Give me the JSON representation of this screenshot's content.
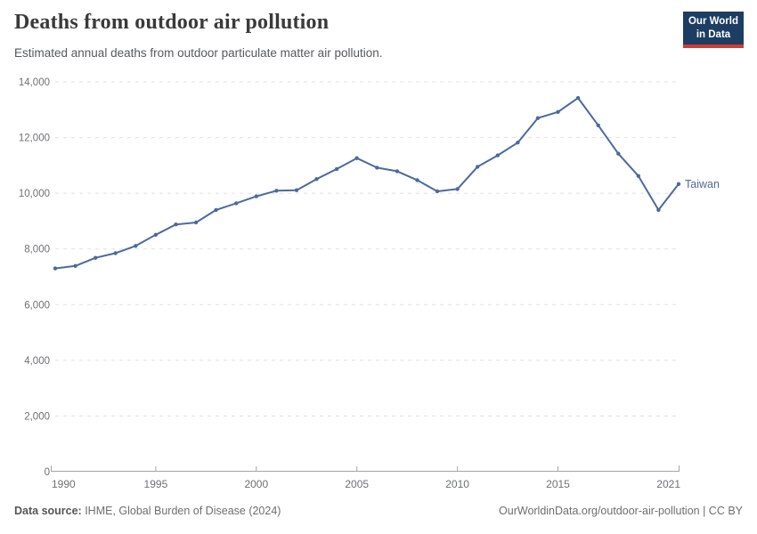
{
  "header": {
    "title": "Deaths from outdoor air pollution",
    "subtitle": "Estimated annual deaths from outdoor particulate matter air pollution."
  },
  "logo": {
    "line1": "Our World",
    "line2": "in Data",
    "bg_color": "#1d3d63",
    "accent_color": "#cd3d32"
  },
  "chart_data": {
    "type": "line",
    "title": "Deaths from outdoor air pollution",
    "xlabel": "",
    "ylabel": "",
    "ylim": [
      0,
      14000
    ],
    "yticks": [
      0,
      2000,
      4000,
      6000,
      8000,
      10000,
      12000,
      14000
    ],
    "ytick_labels": [
      "0",
      "2,000",
      "4,000",
      "6,000",
      "8,000",
      "10,000",
      "12,000",
      "14,000"
    ],
    "xticks": [
      1990,
      1995,
      2000,
      2005,
      2010,
      2015,
      2021
    ],
    "grid": "horizontal-dashed",
    "legend_position": "end-of-line-label",
    "x": [
      1990,
      1991,
      1992,
      1993,
      1994,
      1995,
      1996,
      1997,
      1998,
      1999,
      2000,
      2001,
      2002,
      2003,
      2004,
      2005,
      2006,
      2007,
      2008,
      2009,
      2010,
      2011,
      2012,
      2013,
      2014,
      2015,
      2016,
      2017,
      2018,
      2019,
      2020,
      2021
    ],
    "series": [
      {
        "name": "Taiwan",
        "color": "#4c6a9c",
        "values": [
          7300,
          7390,
          7680,
          7850,
          8110,
          8510,
          8880,
          8950,
          9400,
          9640,
          9890,
          10090,
          10110,
          10510,
          10870,
          11260,
          10920,
          10790,
          10470,
          10070,
          10150,
          10950,
          11360,
          11820,
          12700,
          12920,
          13420,
          12440,
          11420,
          10620,
          9400,
          10330
        ]
      }
    ],
    "colors": {
      "gridline": "#e0e0e0",
      "axis": "#a5a5a5",
      "tick_label": "#6e7073"
    }
  },
  "footer": {
    "source_label": "Data source:",
    "source_value": " IHME, Global Burden of Disease (2024)",
    "right_text": "OurWorldinData.org/outdoor-air-pollution | CC BY"
  }
}
